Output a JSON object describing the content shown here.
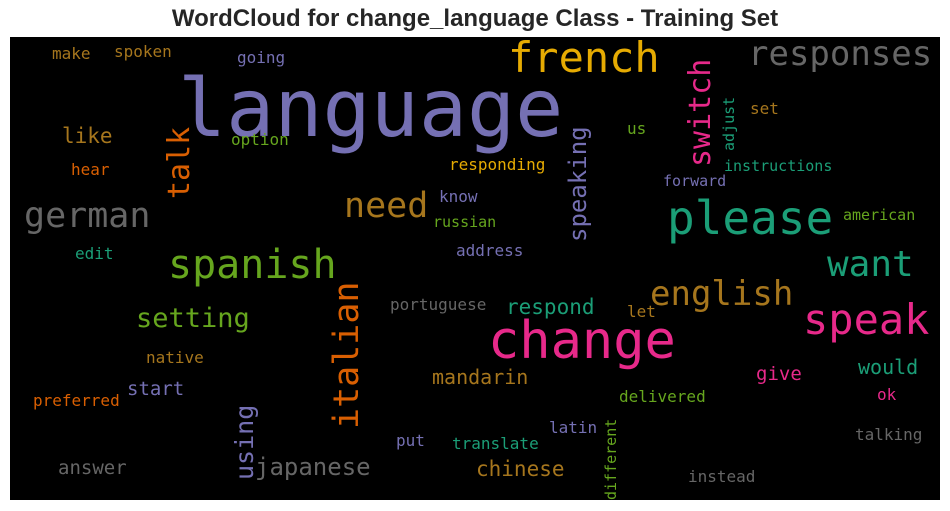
{
  "title": "WordCloud for change_language Class - Training Set",
  "colors": {
    "purple": "#7570b3",
    "orange": "#d95f02",
    "green": "#1b9e77",
    "gold": "#e6ab02",
    "lime": "#66a61e",
    "pink": "#e7298a",
    "brown": "#a6761d",
    "gray": "#666666"
  },
  "words": [
    {
      "text": "language",
      "color": "purple"
    },
    {
      "text": "change",
      "color": "pink"
    },
    {
      "text": "french",
      "color": "gold"
    },
    {
      "text": "responses",
      "color": "gray"
    },
    {
      "text": "please",
      "color": "green"
    },
    {
      "text": "spanish",
      "color": "lime"
    },
    {
      "text": "speak",
      "color": "pink"
    },
    {
      "text": "german",
      "color": "gray"
    },
    {
      "text": "want",
      "color": "green"
    },
    {
      "text": "need",
      "color": "brown"
    },
    {
      "text": "english",
      "color": "brown"
    },
    {
      "text": "italian",
      "color": "orange"
    },
    {
      "text": "switch",
      "color": "pink"
    },
    {
      "text": "talk",
      "color": "orange"
    },
    {
      "text": "speaking",
      "color": "purple"
    },
    {
      "text": "japanese",
      "color": "gray"
    },
    {
      "text": "setting",
      "color": "lime"
    },
    {
      "text": "using",
      "color": "purple"
    },
    {
      "text": "like",
      "color": "brown"
    },
    {
      "text": "respond",
      "color": "green"
    },
    {
      "text": "mandarin",
      "color": "brown"
    },
    {
      "text": "chinese",
      "color": "brown"
    },
    {
      "text": "would",
      "color": "green"
    },
    {
      "text": "give",
      "color": "pink"
    },
    {
      "text": "answer",
      "color": "gray"
    },
    {
      "text": "start",
      "color": "purple"
    },
    {
      "text": "make",
      "color": "brown"
    },
    {
      "text": "spoken",
      "color": "brown"
    },
    {
      "text": "going",
      "color": "purple"
    },
    {
      "text": "option",
      "color": "lime"
    },
    {
      "text": "hear",
      "color": "orange"
    },
    {
      "text": "responding",
      "color": "gold"
    },
    {
      "text": "know",
      "color": "purple"
    },
    {
      "text": "russian",
      "color": "lime"
    },
    {
      "text": "address",
      "color": "purple"
    },
    {
      "text": "edit",
      "color": "green"
    },
    {
      "text": "portuguese",
      "color": "gray"
    },
    {
      "text": "let",
      "color": "brown"
    },
    {
      "text": "native",
      "color": "brown"
    },
    {
      "text": "preferred",
      "color": "orange"
    },
    {
      "text": "delivered",
      "color": "lime"
    },
    {
      "text": "put",
      "color": "purple"
    },
    {
      "text": "translate",
      "color": "green"
    },
    {
      "text": "latin",
      "color": "purple"
    },
    {
      "text": "different",
      "color": "lime"
    },
    {
      "text": "instead",
      "color": "gray"
    },
    {
      "text": "talking",
      "color": "gray"
    },
    {
      "text": "ok",
      "color": "pink"
    },
    {
      "text": "american",
      "color": "lime"
    },
    {
      "text": "forward",
      "color": "purple"
    },
    {
      "text": "instructions",
      "color": "green"
    },
    {
      "text": "us",
      "color": "lime"
    },
    {
      "text": "set",
      "color": "brown"
    },
    {
      "text": "adjust",
      "color": "green"
    }
  ]
}
